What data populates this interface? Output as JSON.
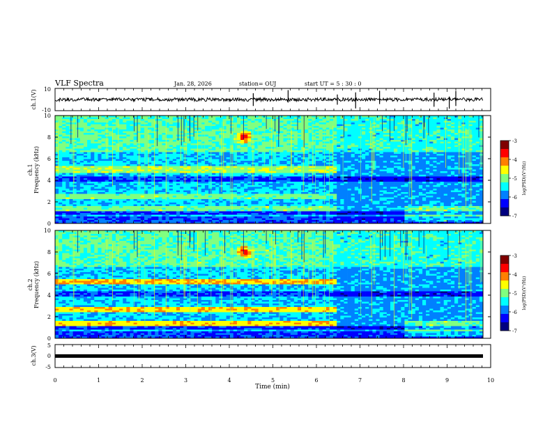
{
  "header": {
    "title": "VLF Spectra",
    "date": "Jan. 28, 2026",
    "station": "station= OUJ",
    "start_ut": "start  UT  =   5  : 30 : 0"
  },
  "chart_data": [
    {
      "type": "line",
      "name": "ch1-waveform",
      "ylabel": "ch.1(V)",
      "ylim": [
        -10,
        10
      ],
      "yticks": [
        "10",
        "-10"
      ],
      "xlim": [
        0,
        10
      ],
      "baseline": 0,
      "spikes_min": [
        4.55,
        5.35,
        6.48,
        6.9,
        7.45,
        8.7,
        9.05,
        9.2
      ]
    },
    {
      "type": "heatmap",
      "name": "ch1-spectrogram",
      "ylabel": "ch.1\nFrequency (kHz)",
      "ylabel_lines": [
        "ch.1",
        "Frequency (kHz)"
      ],
      "ylim": [
        0,
        10
      ],
      "yticks": [
        "0",
        "2",
        "4",
        "6",
        "8",
        "10"
      ],
      "xlim": [
        0,
        10
      ],
      "emission_event": {
        "t_min": 4.35,
        "f_khz": 8.0
      },
      "bands_khz": [
        5.0,
        2.5,
        1.3
      ],
      "transition_min": 6.5,
      "colorbar": {
        "label": "log(PSD)(V²/Hz)",
        "range": [
          -7,
          -3
        ],
        "ticks": [
          "-3",
          "-4",
          "-5",
          "-6",
          "-7"
        ]
      }
    },
    {
      "type": "heatmap",
      "name": "ch2-spectrogram",
      "ylabel": "ch.2\nFrequency (kHz)",
      "ylabel_lines": [
        "ch.2",
        "Frequency (kHz)"
      ],
      "ylim": [
        0,
        10
      ],
      "yticks": [
        "0",
        "2",
        "4",
        "6",
        "8",
        "10"
      ],
      "xlim": [
        0,
        10
      ],
      "emission_event": {
        "t_min": 4.35,
        "f_khz": 8.0
      },
      "bands_khz": [
        5.2,
        2.6,
        1.3
      ],
      "transition_min": 6.5,
      "colorbar": {
        "label": "log(PSD)(V²/Hz)",
        "range": [
          -7,
          -3
        ],
        "ticks": [
          "-3",
          "-4",
          "-5",
          "-6",
          "-7"
        ]
      }
    },
    {
      "type": "line",
      "name": "ch3-waveform",
      "ylabel": "ch.3(V)",
      "ylim": [
        -5,
        5
      ],
      "yticks": [
        "5",
        "0",
        "-5"
      ],
      "xlim": [
        0,
        10
      ],
      "baseline": 0
    }
  ],
  "xaxis": {
    "label": "Time (min)",
    "ticks": [
      "0",
      "1",
      "2",
      "3",
      "4",
      "5",
      "6",
      "7",
      "8",
      "9",
      "10"
    ]
  },
  "colors": {
    "jet": [
      "#000080",
      "#0000ff",
      "#0080ff",
      "#00ffff",
      "#80ff80",
      "#ffff00",
      "#ff8000",
      "#ff0000",
      "#800000"
    ]
  }
}
